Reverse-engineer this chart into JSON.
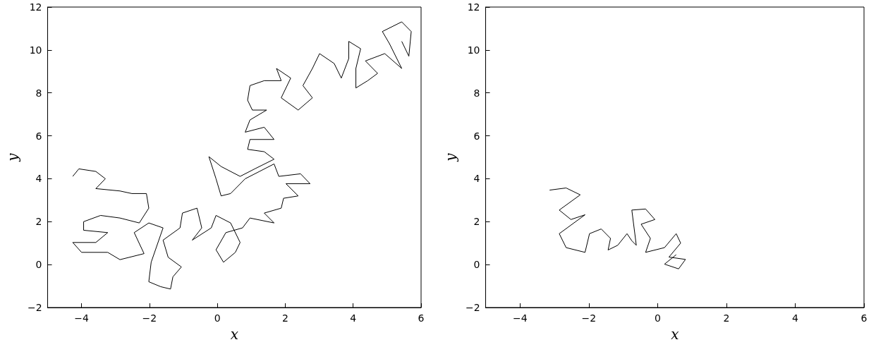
{
  "chart_data": [
    {
      "type": "line",
      "xlabel": "x",
      "ylabel": "y",
      "color": "#000000",
      "marker": "none",
      "grid": false,
      "xlim": [
        -5,
        6
      ],
      "ylim": [
        -2,
        12
      ],
      "xticks": [
        -4,
        -2,
        0,
        2,
        4,
        6
      ],
      "yticks": [
        -2,
        0,
        2,
        4,
        6,
        8,
        10,
        12
      ],
      "x": [
        -4.26,
        -4.08,
        -3.58,
        -3.3,
        -3.58,
        -2.87,
        -2.52,
        -2.09,
        -2.02,
        -2.3,
        -2.87,
        -3.44,
        -3.94,
        -3.94,
        -3.23,
        -3.58,
        -4.26,
        -4.0,
        -3.23,
        -2.87,
        -2.16,
        -2.45,
        -2.02,
        -1.6,
        -1.95,
        -2.02,
        -1.67,
        -1.38,
        -1.31,
        -1.06,
        -1.45,
        -1.6,
        -1.1,
        -1.03,
        -0.6,
        -0.46,
        -0.74,
        -0.18,
        -0.04,
        0.39,
        0.67,
        0.53,
        0.18,
        -0.04,
        0.25,
        0.74,
        0.96,
        1.67,
        1.38,
        1.88,
        1.95,
        2.38,
        2.02,
        2.73,
        2.45,
        1.81,
        1.67,
        1.24,
        0.82,
        0.39,
        0.11,
        -0.04,
        -0.25,
        0.11,
        0.67,
        1.1,
        1.67,
        1.38,
        0.89,
        0.96,
        1.67,
        1.38,
        0.82,
        0.96,
        1.45,
        1.03,
        0.89,
        0.96,
        1.38,
        1.88,
        1.74,
        2.16,
        1.88,
        2.38,
        2.8,
        2.52,
        2.8,
        3.01,
        3.44,
        3.65,
        3.87,
        3.87,
        4.22,
        4.08,
        4.08,
        4.43,
        4.72,
        4.36,
        4.93,
        5.43,
        5.07,
        4.86,
        5.43,
        5.71,
        5.64,
        5.43
      ],
      "values": [
        4.11,
        4.46,
        4.34,
        4.0,
        3.54,
        3.43,
        3.31,
        3.31,
        2.63,
        1.94,
        2.17,
        2.29,
        2.0,
        1.6,
        1.49,
        1.03,
        1.03,
        0.57,
        0.57,
        0.23,
        0.51,
        1.49,
        1.94,
        1.71,
        0.11,
        -0.8,
        -1.03,
        -1.14,
        -0.57,
        -0.11,
        0.34,
        1.14,
        1.71,
        2.4,
        2.63,
        1.71,
        1.14,
        1.71,
        2.29,
        1.94,
        1.03,
        0.57,
        0.11,
        0.69,
        1.49,
        1.71,
        2.17,
        1.94,
        2.4,
        2.63,
        3.09,
        3.2,
        3.77,
        3.77,
        4.23,
        4.11,
        4.69,
        4.34,
        4.0,
        3.31,
        3.2,
        4.0,
        5.03,
        4.57,
        4.11,
        4.46,
        4.91,
        5.26,
        5.37,
        5.83,
        5.83,
        6.4,
        6.17,
        6.74,
        7.2,
        7.2,
        7.66,
        8.34,
        8.57,
        8.57,
        9.14,
        8.69,
        7.77,
        7.2,
        7.77,
        8.34,
        9.14,
        9.83,
        9.37,
        8.69,
        9.6,
        10.4,
        10.06,
        9.14,
        8.23,
        8.57,
        8.91,
        9.49,
        9.83,
        9.14,
        10.29,
        10.86,
        11.31,
        10.86,
        9.71,
        10.4
      ]
    },
    {
      "type": "line",
      "xlabel": "x",
      "ylabel": "y",
      "color": "#000000",
      "marker": "none",
      "grid": false,
      "xlim": [
        -5,
        6
      ],
      "ylim": [
        -2,
        12
      ],
      "xticks": [
        -4,
        -2,
        0,
        2,
        4,
        6
      ],
      "yticks": [
        -2,
        0,
        2,
        4,
        6,
        8,
        10,
        12
      ],
      "x": [
        -3.14,
        -2.66,
        -2.25,
        -2.86,
        -2.52,
        -2.11,
        -2.86,
        -2.66,
        -2.11,
        -1.98,
        -1.64,
        -1.37,
        -1.44,
        -1.16,
        -0.89,
        -0.75,
        -0.62,
        -0.75,
        -0.35,
        -0.08,
        -0.48,
        -0.21,
        -0.35,
        0.2,
        0.54,
        0.67,
        0.33,
        0.81,
        0.61,
        0.2,
        0.54
      ],
      "values": [
        3.47,
        3.57,
        3.25,
        2.54,
        2.1,
        2.32,
        1.44,
        0.79,
        0.57,
        1.44,
        1.66,
        1.22,
        0.68,
        0.9,
        1.44,
        1.11,
        0.9,
        2.54,
        2.59,
        2.1,
        1.88,
        1.22,
        0.57,
        0.79,
        1.44,
        1.0,
        0.35,
        0.24,
        -0.2,
        0.02,
        0.46
      ]
    }
  ]
}
